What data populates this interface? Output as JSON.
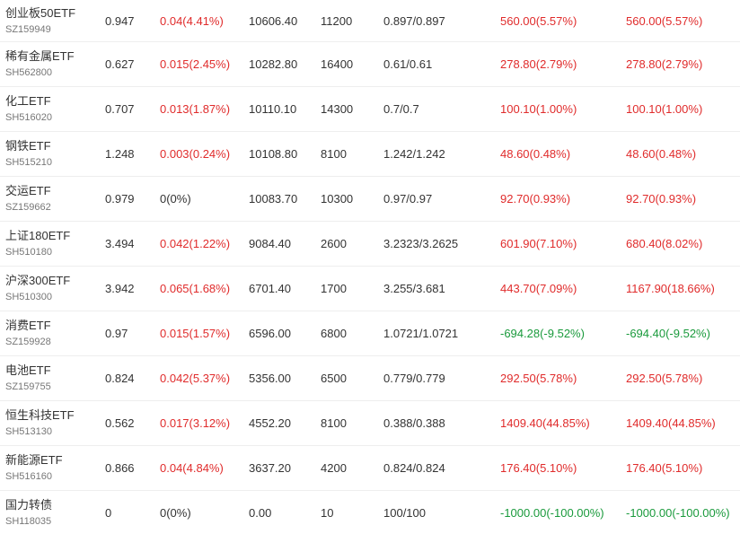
{
  "colors": {
    "up": "#e02b2b",
    "down": "#1a9a3c",
    "flat": "#333333"
  },
  "rows": [
    {
      "name": "创业板50ETF",
      "code": "SZ159949",
      "price": "0.947",
      "change": "0.04(4.41%)",
      "change_dir": "up",
      "value": "10606.40",
      "shares": "11200",
      "cost": "0.897/0.897",
      "pnl1": "560.00(5.57%)",
      "pnl1_dir": "up",
      "pnl2": "560.00(5.57%)",
      "pnl2_dir": "up"
    },
    {
      "name": "稀有金属ETF",
      "code": "SH562800",
      "price": "0.627",
      "change": "0.015(2.45%)",
      "change_dir": "up",
      "value": "10282.80",
      "shares": "16400",
      "cost": "0.61/0.61",
      "pnl1": "278.80(2.79%)",
      "pnl1_dir": "up",
      "pnl2": "278.80(2.79%)",
      "pnl2_dir": "up"
    },
    {
      "name": "化工ETF",
      "code": "SH516020",
      "price": "0.707",
      "change": "0.013(1.87%)",
      "change_dir": "up",
      "value": "10110.10",
      "shares": "14300",
      "cost": "0.7/0.7",
      "pnl1": "100.10(1.00%)",
      "pnl1_dir": "up",
      "pnl2": "100.10(1.00%)",
      "pnl2_dir": "up"
    },
    {
      "name": "钢铁ETF",
      "code": "SH515210",
      "price": "1.248",
      "change": "0.003(0.24%)",
      "change_dir": "up",
      "value": "10108.80",
      "shares": "8100",
      "cost": "1.242/1.242",
      "pnl1": "48.60(0.48%)",
      "pnl1_dir": "up",
      "pnl2": "48.60(0.48%)",
      "pnl2_dir": "up"
    },
    {
      "name": "交运ETF",
      "code": "SZ159662",
      "price": "0.979",
      "change": "0(0%)",
      "change_dir": "flat",
      "value": "10083.70",
      "shares": "10300",
      "cost": "0.97/0.97",
      "pnl1": "92.70(0.93%)",
      "pnl1_dir": "up",
      "pnl2": "92.70(0.93%)",
      "pnl2_dir": "up"
    },
    {
      "name": "上证180ETF",
      "code": "SH510180",
      "price": "3.494",
      "change": "0.042(1.22%)",
      "change_dir": "up",
      "value": "9084.40",
      "shares": "2600",
      "cost": "3.2323/3.2625",
      "pnl1": "601.90(7.10%)",
      "pnl1_dir": "up",
      "pnl2": "680.40(8.02%)",
      "pnl2_dir": "up"
    },
    {
      "name": "沪深300ETF",
      "code": "SH510300",
      "price": "3.942",
      "change": "0.065(1.68%)",
      "change_dir": "up",
      "value": "6701.40",
      "shares": "1700",
      "cost": "3.255/3.681",
      "pnl1": "443.70(7.09%)",
      "pnl1_dir": "up",
      "pnl2": "1167.90(18.66%)",
      "pnl2_dir": "up"
    },
    {
      "name": "消费ETF",
      "code": "SZ159928",
      "price": "0.97",
      "change": "0.015(1.57%)",
      "change_dir": "up",
      "value": "6596.00",
      "shares": "6800",
      "cost": "1.0721/1.0721",
      "pnl1": "-694.28(-9.52%)",
      "pnl1_dir": "down",
      "pnl2": "-694.40(-9.52%)",
      "pnl2_dir": "down"
    },
    {
      "name": "电池ETF",
      "code": "SZ159755",
      "price": "0.824",
      "change": "0.042(5.37%)",
      "change_dir": "up",
      "value": "5356.00",
      "shares": "6500",
      "cost": "0.779/0.779",
      "pnl1": "292.50(5.78%)",
      "pnl1_dir": "up",
      "pnl2": "292.50(5.78%)",
      "pnl2_dir": "up"
    },
    {
      "name": "恒生科技ETF",
      "code": "SH513130",
      "price": "0.562",
      "change": "0.017(3.12%)",
      "change_dir": "up",
      "value": "4552.20",
      "shares": "8100",
      "cost": "0.388/0.388",
      "pnl1": "1409.40(44.85%)",
      "pnl1_dir": "up",
      "pnl2": "1409.40(44.85%)",
      "pnl2_dir": "up"
    },
    {
      "name": "新能源ETF",
      "code": "SH516160",
      "price": "0.866",
      "change": "0.04(4.84%)",
      "change_dir": "up",
      "value": "3637.20",
      "shares": "4200",
      "cost": "0.824/0.824",
      "pnl1": "176.40(5.10%)",
      "pnl1_dir": "up",
      "pnl2": "176.40(5.10%)",
      "pnl2_dir": "up"
    },
    {
      "name": "国力转债",
      "code": "SH118035",
      "price": "0",
      "change": "0(0%)",
      "change_dir": "flat",
      "value": "0.00",
      "shares": "10",
      "cost": "100/100",
      "pnl1": "-1000.00(-100.00%)",
      "pnl1_dir": "down",
      "pnl2": "-1000.00(-100.00%)",
      "pnl2_dir": "down"
    }
  ]
}
